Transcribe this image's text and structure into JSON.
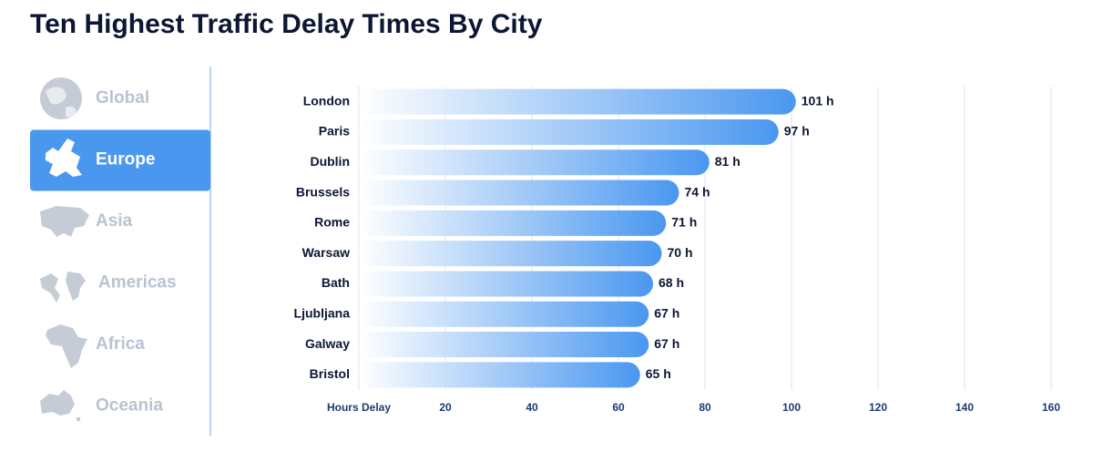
{
  "header": {
    "title": "Ten Highest Traffic Delay Times By City"
  },
  "sidebar": {
    "items": [
      {
        "label": "Global",
        "active": false
      },
      {
        "label": "Europe",
        "active": true
      },
      {
        "label": "Asia",
        "active": false
      },
      {
        "label": "Americas",
        "active": false
      },
      {
        "label": "Africa",
        "active": false
      },
      {
        "label": "Oceania",
        "active": false
      }
    ]
  },
  "chart_data": {
    "type": "bar",
    "orientation": "horizontal",
    "categories": [
      "London",
      "Paris",
      "Dublin",
      "Brussels",
      "Rome",
      "Warsaw",
      "Bath",
      "Ljubljana",
      "Galway",
      "Bristol"
    ],
    "values": [
      101,
      97,
      81,
      74,
      71,
      70,
      68,
      67,
      67,
      65
    ],
    "value_labels": [
      "101 h",
      "97 h",
      "81 h",
      "74 h",
      "71 h",
      "70 h",
      "68 h",
      "67 h",
      "67 h",
      "65 h"
    ],
    "xlabel": "Hours Delay",
    "xlim": [
      0,
      160
    ],
    "xticks": [
      20,
      40,
      60,
      80,
      100,
      120,
      140,
      160
    ],
    "grid": true,
    "color": "#4a97f0"
  }
}
